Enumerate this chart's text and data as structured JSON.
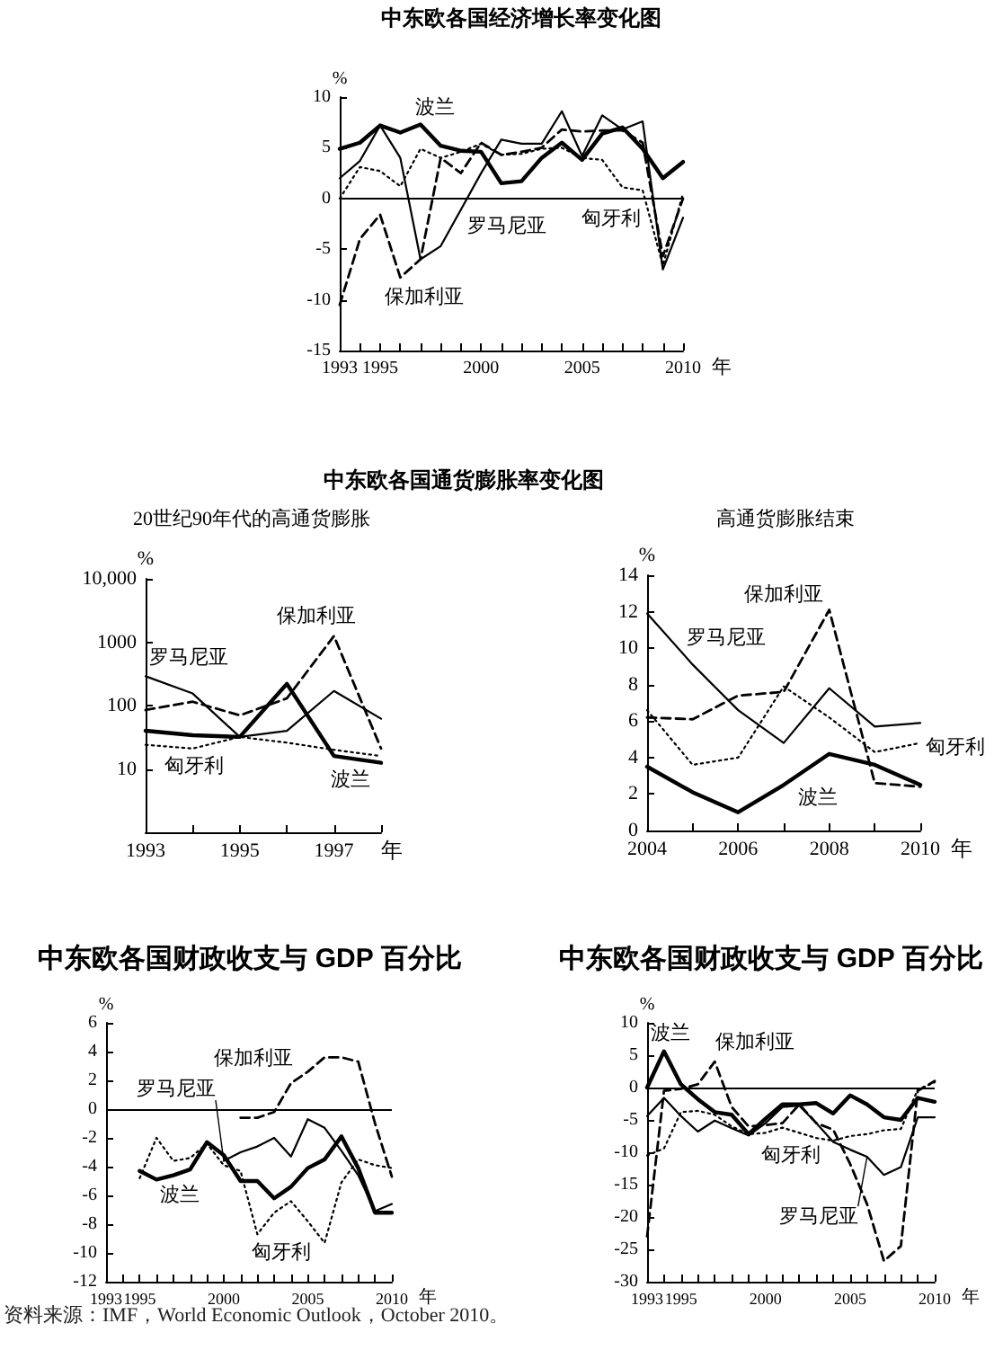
{
  "chart_data": [
    {
      "type": "line",
      "title": "中东欧各国经济增长率变化图",
      "ylabel": "%",
      "xlabel": "年",
      "x": [
        1993,
        1994,
        1995,
        1996,
        1997,
        1998,
        1999,
        2000,
        2001,
        2002,
        2003,
        2004,
        2005,
        2006,
        2007,
        2008,
        2009,
        2010
      ],
      "xlim": [
        1993,
        2010
      ],
      "xticks": [
        1993,
        {
          "value": 1994,
          "label": null
        },
        1995,
        {
          "value": 1996,
          "label": null
        },
        {
          "value": 1997,
          "label": null
        },
        {
          "value": 1998,
          "label": null
        },
        {
          "value": 1999,
          "label": null
        },
        2000,
        {
          "value": 2001,
          "label": null
        },
        {
          "value": 2002,
          "label": null
        },
        {
          "value": 2003,
          "label": null
        },
        {
          "value": 2004,
          "label": null
        },
        2005,
        {
          "value": 2006,
          "label": null
        },
        {
          "value": 2007,
          "label": null
        },
        {
          "value": 2008,
          "label": null
        },
        {
          "value": 2009,
          "label": null
        },
        2010
      ],
      "ylim": [
        -15,
        10
      ],
      "yticks": [
        -15,
        -10,
        -5,
        0,
        5,
        10
      ],
      "ref_lines": [
        {
          "axis": "y",
          "value": 0
        }
      ],
      "series": [
        {
          "name": "波兰",
          "color": "#000000",
          "line_style": "solid",
          "values": [
            4.9,
            5.5,
            7.2,
            6.5,
            7.3,
            5.2,
            4.7,
            4.6,
            1.5,
            1.7,
            4.0,
            5.5,
            3.8,
            6.4,
            7.0,
            4.9,
            2.0,
            3.6
          ]
        },
        {
          "name": "匈牙利",
          "color": "#000000",
          "line_style": "dotted",
          "values": [
            0.0,
            3.1,
            2.7,
            1.2,
            4.9,
            4.0,
            4.6,
            5.4,
            4.3,
            4.4,
            4.9,
            5.0,
            4.0,
            3.8,
            1.1,
            0.8,
            -6.6,
            0.5
          ]
        },
        {
          "name": "罗马尼亚",
          "color": "#000000",
          "line_style": "solid",
          "values": [
            2.0,
            3.7,
            7.2,
            4.0,
            -6.0,
            -4.7,
            -1.1,
            2.5,
            5.8,
            5.4,
            5.4,
            8.6,
            4.2,
            8.2,
            6.8,
            7.6,
            -7.0,
            -1.9
          ]
        },
        {
          "name": "保加利亚",
          "color": "#000000",
          "line_style": "dashed",
          "values": [
            -10.5,
            -4.0,
            -1.6,
            -7.8,
            -6.0,
            4.0,
            2.5,
            5.5,
            4.3,
            4.6,
            5.0,
            6.8,
            6.6,
            6.7,
            6.7,
            5.5,
            -5.7,
            0.0
          ]
        }
      ]
    },
    {
      "type": "line",
      "title": "中东欧各国通货膨胀率变化图",
      "subtitle": "20世纪90年代的高通货膨胀",
      "ylabel": "%",
      "xlabel": "年",
      "x": [
        1993,
        1994,
        1995,
        1996,
        1997,
        1998
      ],
      "xlim": [
        1993,
        1998
      ],
      "xticks": [
        1993,
        {
          "value": 1994,
          "label": null
        },
        1995,
        {
          "value": 1996,
          "label": null
        },
        1997,
        {
          "value": 1998,
          "label": null
        }
      ],
      "log": true,
      "ylim": [
        1,
        10000
      ],
      "yticks": [
        10,
        100,
        1000,
        {
          "value": 10000,
          "label": "10,000"
        }
      ],
      "series": [
        {
          "name": "波兰",
          "color": "#000000",
          "line_style": "solid",
          "values": [
            40,
            34,
            32,
            220,
            16,
            12.5
          ]
        },
        {
          "name": "匈牙利",
          "color": "#000000",
          "line_style": "dotted",
          "values": [
            24,
            21,
            32,
            26,
            20,
            16
          ]
        },
        {
          "name": "罗马尼亚",
          "color": "#000000",
          "line_style": "solid",
          "values": [
            290,
            155,
            32,
            40,
            170,
            62
          ]
        },
        {
          "name": "保加利亚",
          "color": "#000000",
          "line_style": "dashed",
          "values": [
            85,
            115,
            70,
            130,
            1250,
            21
          ]
        }
      ]
    },
    {
      "type": "line",
      "subtitle": "高通货膨胀结束",
      "ylabel": "%",
      "xlabel": "年",
      "x": [
        2004,
        2005,
        2006,
        2007,
        2008,
        2009,
        2010
      ],
      "xlim": [
        2004,
        2010
      ],
      "xticks": [
        2004,
        {
          "value": 2005,
          "label": null
        },
        2006,
        {
          "value": 2007,
          "label": null
        },
        2008,
        {
          "value": 2009,
          "label": null
        },
        2010
      ],
      "ylim": [
        0,
        14
      ],
      "yticks": [
        0,
        2,
        4,
        6,
        8,
        10,
        12,
        14
      ],
      "series": [
        {
          "name": "波兰",
          "color": "#000000",
          "line_style": "solid",
          "values": [
            3.5,
            2.1,
            1.0,
            2.5,
            4.2,
            3.6,
            2.5
          ]
        },
        {
          "name": "匈牙利",
          "color": "#000000",
          "line_style": "dotted",
          "values": [
            6.6,
            3.6,
            4.0,
            7.9,
            6.2,
            4.3,
            4.8
          ]
        },
        {
          "name": "罗马尼亚",
          "color": "#000000",
          "line_style": "solid",
          "values": [
            11.9,
            9.1,
            6.6,
            4.8,
            7.8,
            5.7,
            5.9
          ]
        },
        {
          "name": "保加利亚",
          "color": "#000000",
          "line_style": "dashed",
          "values": [
            6.2,
            6.1,
            7.4,
            7.6,
            12.1,
            2.6,
            2.4
          ]
        }
      ]
    },
    {
      "type": "line",
      "title": "中东欧各国财政收支与 GDP 百分比",
      "ylabel": "%",
      "xlabel": "年",
      "x": [
        1995,
        1996,
        1997,
        1998,
        1999,
        2000,
        2001,
        2002,
        2003,
        2004,
        2005,
        2006,
        2007,
        2008,
        2009,
        2010
      ],
      "xlim": [
        1993,
        2010
      ],
      "xticks": [
        1993,
        {
          "value": 1994,
          "label": null
        },
        1995,
        {
          "value": 1996,
          "label": null
        },
        {
          "value": 1997,
          "label": null
        },
        {
          "value": 1998,
          "label": null
        },
        {
          "value": 1999,
          "label": null
        },
        2000,
        {
          "value": 2001,
          "label": null
        },
        {
          "value": 2002,
          "label": null
        },
        {
          "value": 2003,
          "label": null
        },
        {
          "value": 2004,
          "label": null
        },
        2005,
        {
          "value": 2006,
          "label": null
        },
        {
          "value": 2007,
          "label": null
        },
        {
          "value": 2008,
          "label": null
        },
        {
          "value": 2009,
          "label": null
        },
        2010
      ],
      "ylim": [
        -12,
        6
      ],
      "yticks": [
        -12,
        -10,
        -8,
        -6,
        -4,
        -2,
        0,
        2,
        4,
        6
      ],
      "ref_lines": [
        {
          "axis": "y",
          "value": 0
        }
      ],
      "annotations": [
        "资料来源：IMF，World Economic Outlook，October 2010。"
      ],
      "series": [
        {
          "name": "波兰",
          "color": "#000000",
          "line_style": "solid",
          "values": [
            -4.3,
            -4.9,
            -4.6,
            -4.2,
            -2.3,
            -3.2,
            -5.0,
            -5.0,
            -6.2,
            -5.4,
            -4.1,
            -3.5,
            -1.9,
            -4.1,
            -7.2,
            -7.2
          ]
        },
        {
          "name": "匈牙利",
          "color": "#000000",
          "line_style": "dotted",
          "values": [
            -4.8,
            -2.0,
            -3.6,
            -3.4,
            -2.4,
            -3.9,
            -4.3,
            -8.7,
            -7.2,
            -6.4,
            -7.8,
            -9.3,
            -5.1,
            -3.5,
            -3.9,
            -4.1
          ]
        },
        {
          "name": "罗马尼亚",
          "color": "#000000",
          "line_style": "solid",
          "values": [
            null,
            null,
            null,
            null,
            null,
            -3.6,
            -3.0,
            -2.6,
            -2.0,
            -3.3,
            -0.7,
            -1.3,
            -2.9,
            -4.6,
            -7.1,
            -6.6
          ]
        },
        {
          "name": "保加利亚",
          "color": "#000000",
          "line_style": "dashed",
          "values": [
            null,
            null,
            null,
            null,
            null,
            null,
            -0.6,
            -0.6,
            -0.2,
            1.8,
            2.6,
            3.6,
            3.6,
            3.3,
            -1.0,
            -4.7
          ]
        }
      ]
    },
    {
      "type": "line",
      "title": "中东欧各国财政收支与 GDP 百分比",
      "ylabel": "%",
      "xlabel": "年",
      "x": [
        1993,
        1994,
        1995,
        1996,
        1997,
        1998,
        1999,
        2000,
        2001,
        2002,
        2003,
        2004,
        2005,
        2006,
        2007,
        2008,
        2009,
        2010
      ],
      "xlim": [
        1993,
        2010
      ],
      "xticks": [
        1993,
        {
          "value": 1994,
          "label": null
        },
        1995,
        {
          "value": 1996,
          "label": null
        },
        {
          "value": 1997,
          "label": null
        },
        {
          "value": 1998,
          "label": null
        },
        {
          "value": 1999,
          "label": null
        },
        2000,
        {
          "value": 2001,
          "label": null
        },
        {
          "value": 2002,
          "label": null
        },
        {
          "value": 2003,
          "label": null
        },
        {
          "value": 2004,
          "label": null
        },
        2005,
        {
          "value": 2006,
          "label": null
        },
        {
          "value": 2007,
          "label": null
        },
        {
          "value": 2008,
          "label": null
        },
        {
          "value": 2009,
          "label": null
        },
        2010
      ],
      "ylim": [
        -30,
        10
      ],
      "yticks": [
        -30,
        -25,
        -20,
        -15,
        -10,
        -5,
        0,
        5,
        10
      ],
      "ref_lines": [
        {
          "axis": "y",
          "value": 0
        }
      ],
      "series": [
        {
          "name": "波兰",
          "color": "#000000",
          "line_style": "solid",
          "values": [
            0.0,
            5.6,
            0.5,
            -1.8,
            -3.8,
            -4.2,
            -7.2,
            -4.8,
            -2.6,
            -2.6,
            -2.4,
            -4.0,
            -1.2,
            -2.6,
            -4.6,
            -5.0,
            -1.6,
            -2.2
          ]
        },
        {
          "name": "匈牙利",
          "color": "#000000",
          "line_style": "dotted",
          "values": [
            -10.5,
            -9.4,
            -3.8,
            -3.6,
            -4.2,
            -6.0,
            -7.2,
            -7.0,
            -6.2,
            -7.0,
            -7.8,
            -8.2,
            -7.5,
            -7.2,
            -6.6,
            -6.4,
            -0.3,
            0.8
          ]
        },
        {
          "name": "罗马尼亚",
          "color": "#000000",
          "line_style": "solid",
          "values": [
            -4.4,
            -1.6,
            -4.4,
            -6.8,
            -5.1,
            -6.3,
            -7.4,
            -5.5,
            -3.0,
            -2.8,
            -5.5,
            -8.4,
            -9.6,
            -10.7,
            -13.5,
            -12.3,
            -4.6,
            -4.6
          ]
        },
        {
          "name": "保加利亚",
          "color": "#000000",
          "line_style": "dashed",
          "values": [
            -23.0,
            -0.5,
            -0.2,
            0.5,
            4.0,
            -3.0,
            -6.0,
            -5.8,
            -5.5,
            -2.6,
            -5.5,
            -6.5,
            -11.8,
            -18.0,
            -26.8,
            -24.5,
            -0.5,
            1.0
          ]
        }
      ]
    }
  ]
}
